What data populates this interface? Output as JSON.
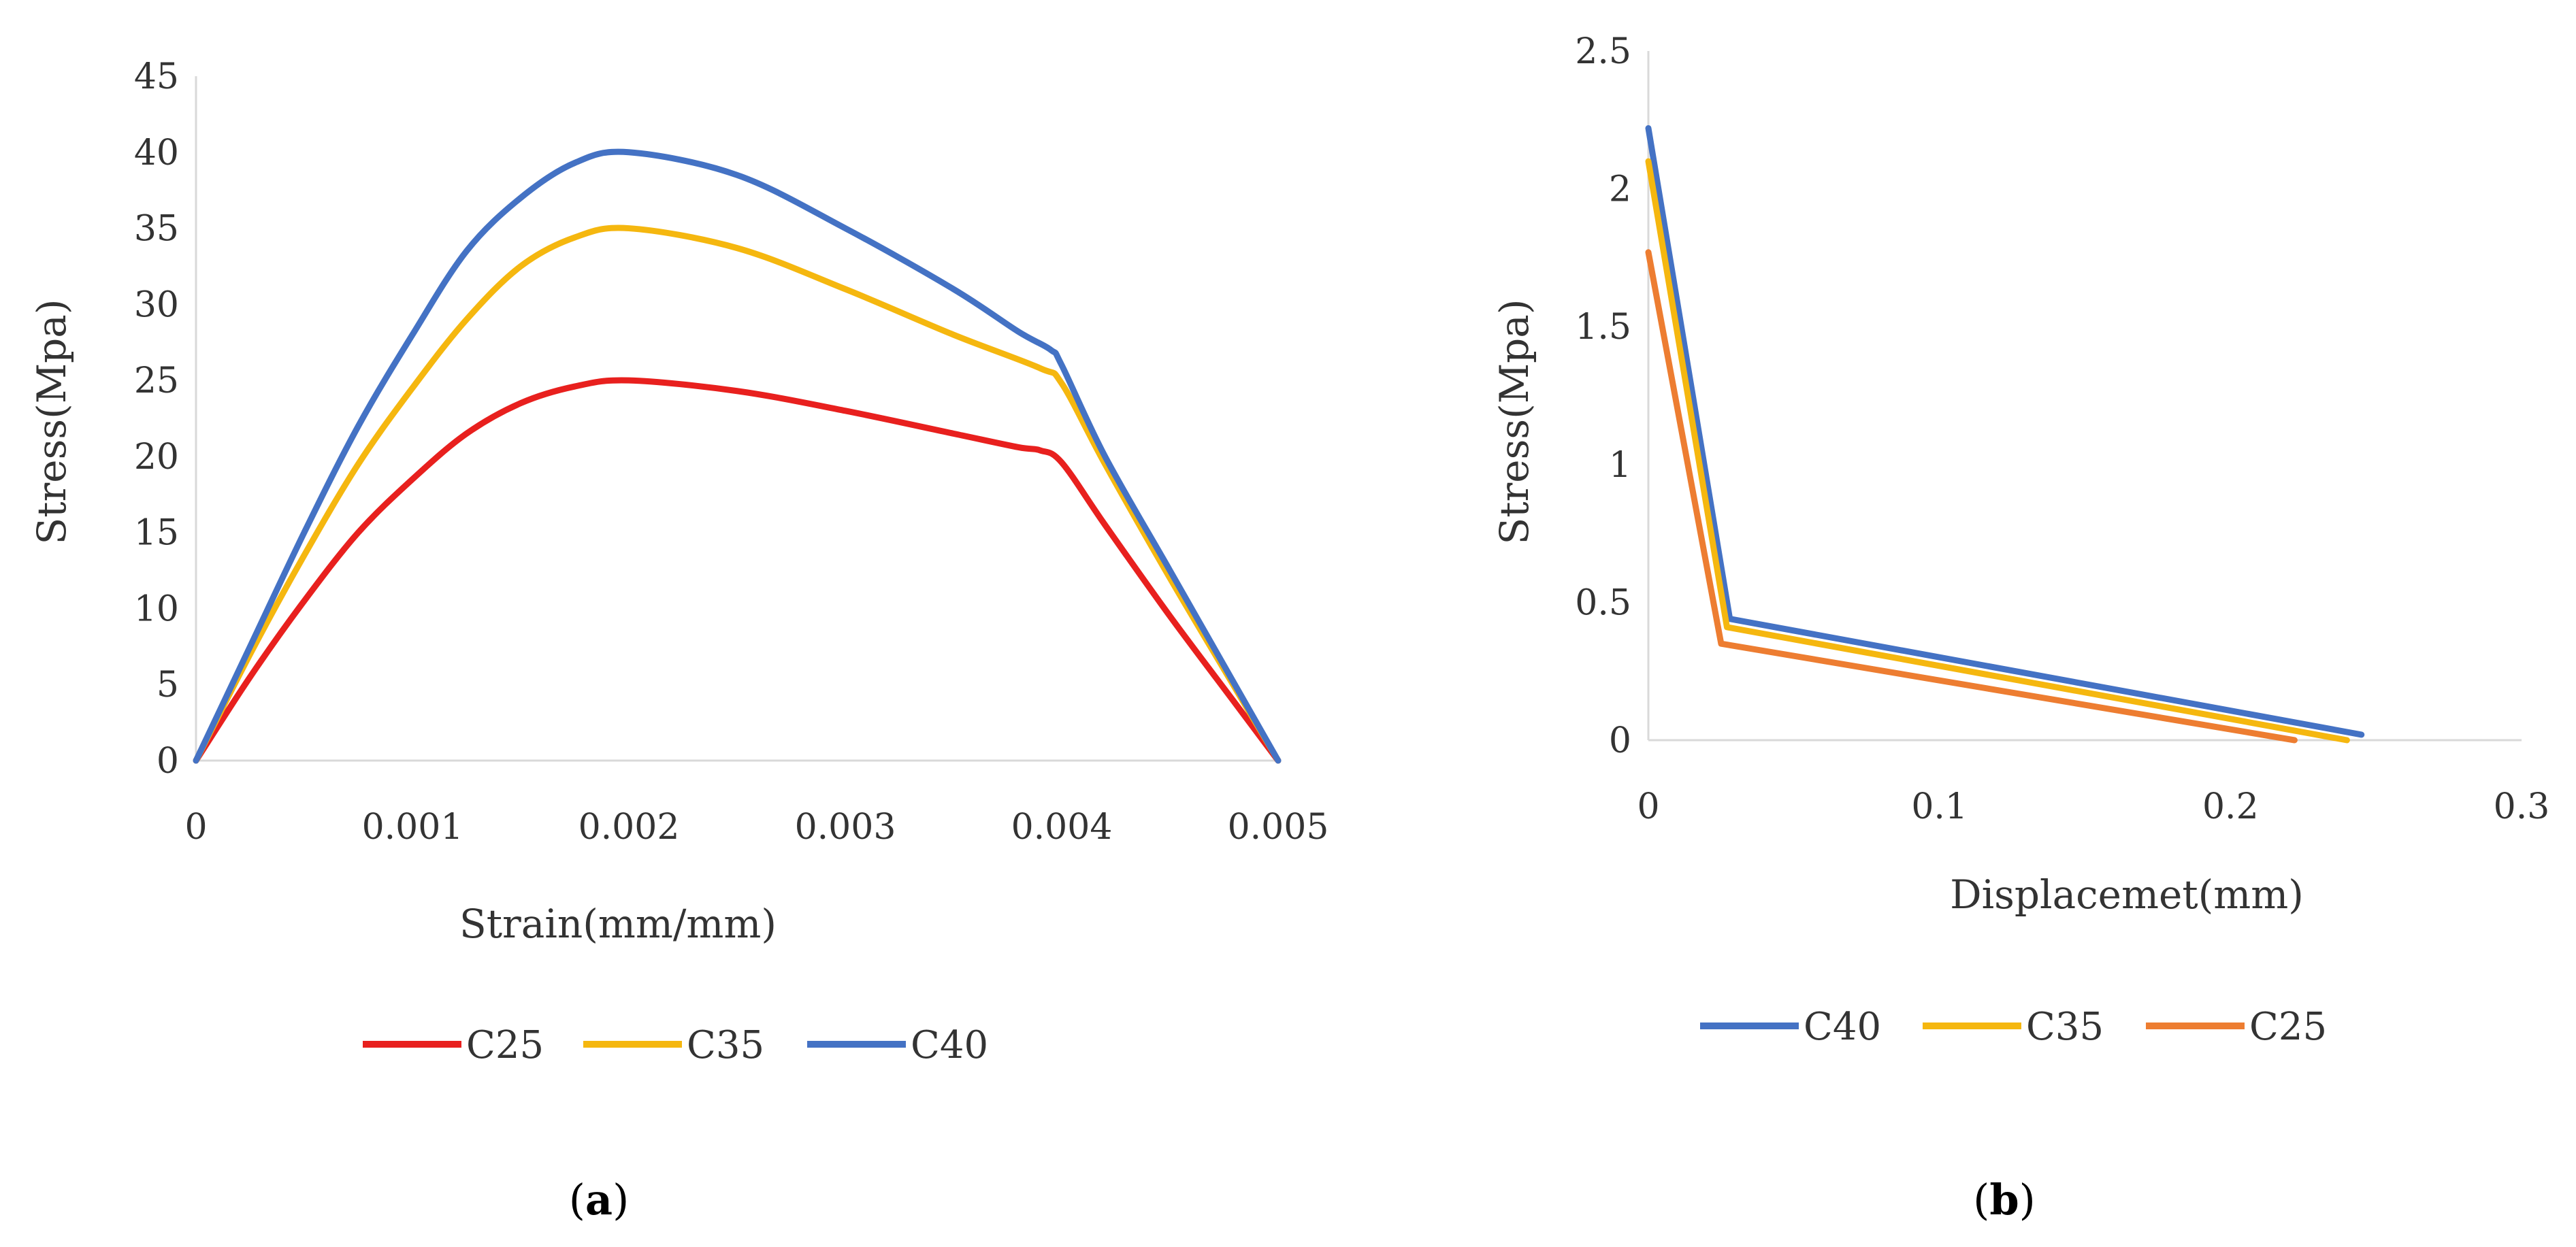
{
  "chart_data": [
    {
      "panel_label": "a",
      "type": "line",
      "xlabel": "Strain(mm/mm)",
      "ylabel": "Stress(Mpa)",
      "xlim": [
        0,
        0.005
      ],
      "ylim": [
        0,
        45
      ],
      "xticks": [
        0,
        0.001,
        0.002,
        0.003,
        0.004,
        0.005
      ],
      "xtick_labels": [
        "0",
        "0.001",
        "0.002",
        "0.003",
        "0.004",
        "0.005"
      ],
      "yticks": [
        0,
        5,
        10,
        15,
        20,
        25,
        30,
        35,
        40,
        45
      ],
      "ytick_labels": [
        "0",
        "5",
        "10",
        "15",
        "20",
        "25",
        "30",
        "35",
        "40",
        "45"
      ],
      "legend_position": "bottom",
      "series": [
        {
          "name": "C25",
          "color": "#e8201e",
          "x": [
            0,
            0.00025,
            0.0005,
            0.00075,
            0.001,
            0.00125,
            0.0015,
            0.00175,
            0.002,
            0.0025,
            0.003,
            0.0035,
            0.0038,
            0.0039,
            0.004,
            0.0042,
            0.0045,
            0.0048,
            0.005
          ],
          "y": [
            0,
            5.5,
            10.5,
            15,
            18.5,
            21.5,
            23.5,
            24.6,
            25,
            24.3,
            23,
            21.5,
            20.6,
            20.4,
            19.6,
            15.5,
            9.5,
            3.8,
            0
          ]
        },
        {
          "name": "C35",
          "color": "#f5b70f",
          "x": [
            0,
            0.00025,
            0.0005,
            0.00075,
            0.001,
            0.00125,
            0.0015,
            0.00175,
            0.002,
            0.0025,
            0.003,
            0.0035,
            0.0039,
            0.004,
            0.0042,
            0.0045,
            0.0048,
            0.005
          ],
          "y": [
            0,
            7,
            13.5,
            19.5,
            24.5,
            29,
            32.5,
            34.4,
            35,
            33.7,
            31,
            28,
            25.8,
            24.8,
            19.5,
            12,
            4.8,
            0
          ]
        },
        {
          "name": "C40",
          "color": "#4472c4",
          "x": [
            0,
            0.00025,
            0.0005,
            0.00075,
            0.001,
            0.00125,
            0.0015,
            0.00175,
            0.002,
            0.0025,
            0.003,
            0.0035,
            0.0038,
            0.00395,
            0.004,
            0.0042,
            0.0045,
            0.0048,
            0.005
          ],
          "y": [
            0,
            7.5,
            15,
            22,
            28,
            33.5,
            37,
            39.3,
            40,
            38.5,
            35,
            31,
            28.2,
            27,
            26,
            20,
            12.5,
            5,
            0
          ]
        }
      ],
      "legend": [
        "C25",
        "C35",
        "C40"
      ]
    },
    {
      "panel_label": "b",
      "type": "line",
      "xlabel": "Displacemet(mm)",
      "ylabel": "Stress(Mpa)",
      "xlim": [
        0,
        0.3
      ],
      "ylim": [
        0,
        2.5
      ],
      "xticks": [
        0,
        0.1,
        0.2,
        0.3
      ],
      "xtick_labels": [
        "0",
        "0.1",
        "0.2",
        "0.3"
      ],
      "yticks": [
        0,
        0.5,
        1,
        1.5,
        2,
        2.5
      ],
      "ytick_labels": [
        "0",
        "0.5",
        "1",
        "1.5",
        "2",
        "2.5"
      ],
      "legend_position": "bottom",
      "series": [
        {
          "name": "C40",
          "color": "#4472c4",
          "x": [
            0,
            0.028,
            0.245
          ],
          "y": [
            2.22,
            0.44,
            0.02
          ]
        },
        {
          "name": "C35",
          "color": "#f5b70f",
          "x": [
            0,
            0.027,
            0.24
          ],
          "y": [
            2.1,
            0.41,
            0.0
          ]
        },
        {
          "name": "C25",
          "color": "#ed7d31",
          "x": [
            0,
            0.025,
            0.222
          ],
          "y": [
            1.77,
            0.35,
            0.0
          ]
        }
      ],
      "legend": [
        "C40",
        "C35",
        "C25"
      ]
    }
  ]
}
